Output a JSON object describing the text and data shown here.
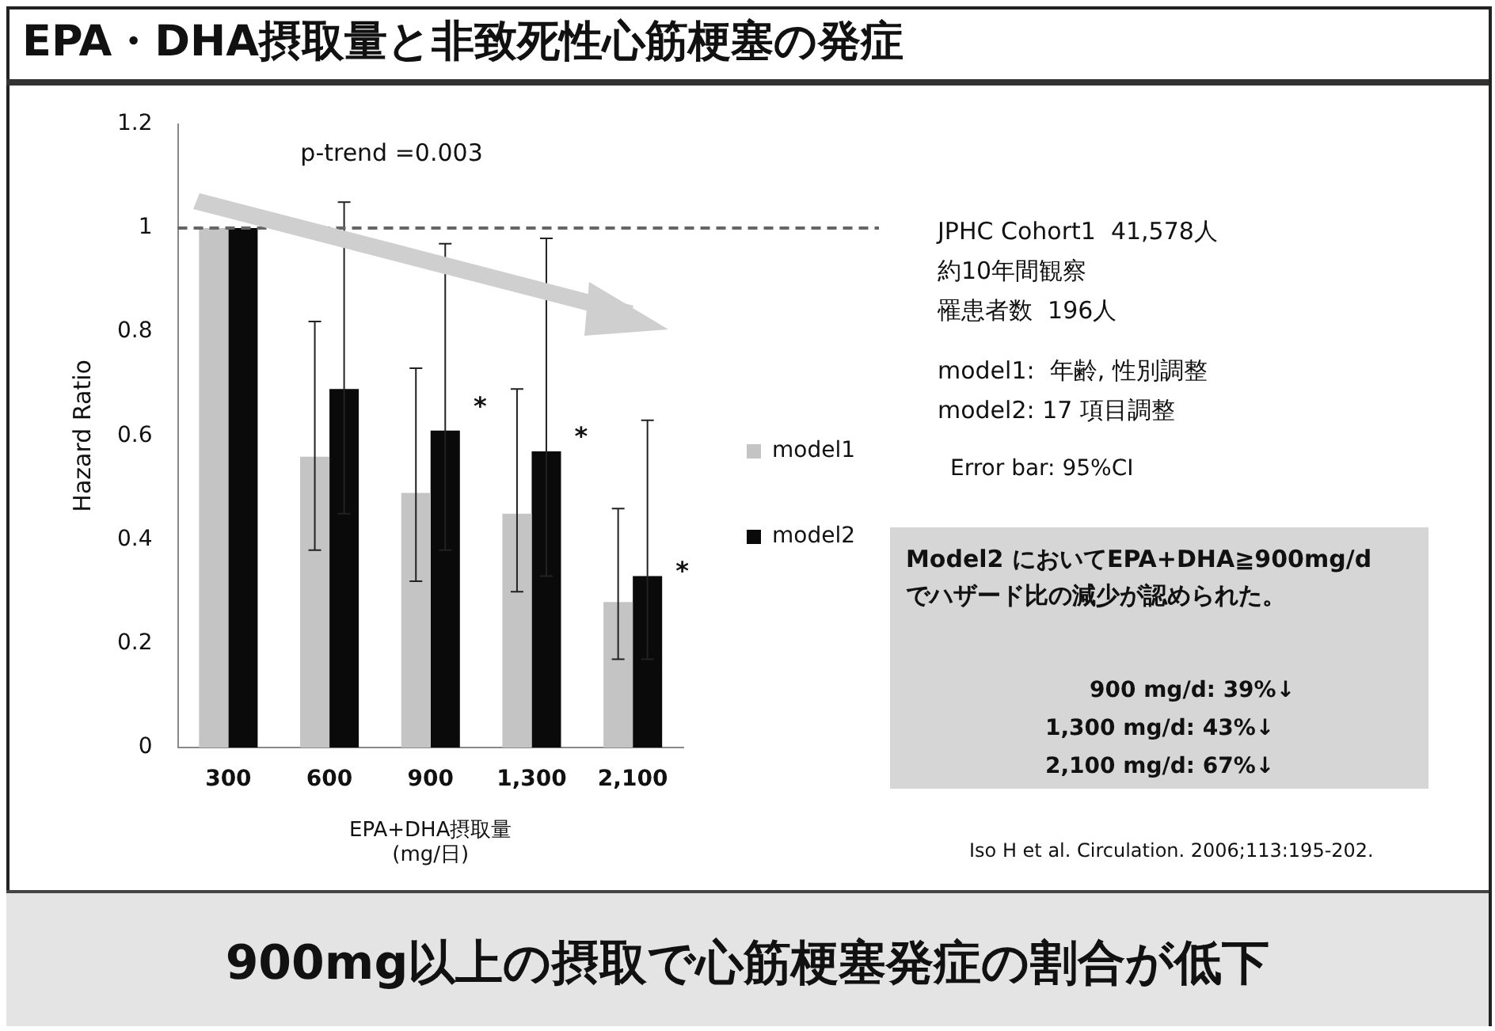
{
  "chart_data": {
    "type": "bar",
    "title": "EPA・DHA摂取量と非致死性心筋梗塞の発症",
    "subtitle": "900mg以上の摂取で心筋梗塞発症の割合が低下",
    "xlabel": "EPA+DHA摂取量\n(mg/日)",
    "ylabel": "Hazard Ratio",
    "categories": [
      "300",
      "600",
      "900",
      "1,300",
      "2,100"
    ],
    "series": [
      {
        "name": "model1",
        "color": "#c4c4c4",
        "values": [
          1,
          0.56,
          0.49,
          0.45,
          0.28
        ],
        "errors": [
          null,
          [
            0.38,
            0.82
          ],
          [
            0.32,
            0.73
          ],
          [
            0.3,
            0.69
          ],
          [
            0.17,
            0.46
          ]
        ]
      },
      {
        "name": "model2",
        "color": "#0a0a0a",
        "values": [
          1,
          0.69,
          0.61,
          0.57,
          0.33
        ],
        "errors": [
          null,
          [
            0.45,
            1.05
          ],
          [
            0.38,
            0.97
          ],
          [
            0.33,
            0.98
          ],
          [
            0.17,
            0.63
          ]
        ]
      }
    ],
    "ylim": [
      0,
      1.2
    ],
    "yticks": [
      0,
      0.2,
      0.4,
      0.6,
      0.8,
      1,
      1.2
    ],
    "grid": false,
    "legend": "right",
    "ref_lines": [
      {
        "axis": "y",
        "value": 1,
        "color": "#666666",
        "line_style": "dashed"
      }
    ],
    "annotations": [
      "p-trend =0.003",
      "JPHC Cohort1  41,578人",
      "約10年間観察",
      "罹患者数  196人",
      "model1:  年齢, 性別調整",
      "model2: 17 項目調整",
      "Error bar: 95%CI",
      "Model2 においてEPA+DHA≧900mg/d\nでハザード比の減少が認められた。",
      "900 mg/d: 39%↓",
      "1,300 mg/d: 43%↓",
      "2,100 mg/d: 67%↓",
      "Iso H et al. Circulation. 2006;113:195-202.",
      "*",
      "*",
      "*"
    ]
  }
}
